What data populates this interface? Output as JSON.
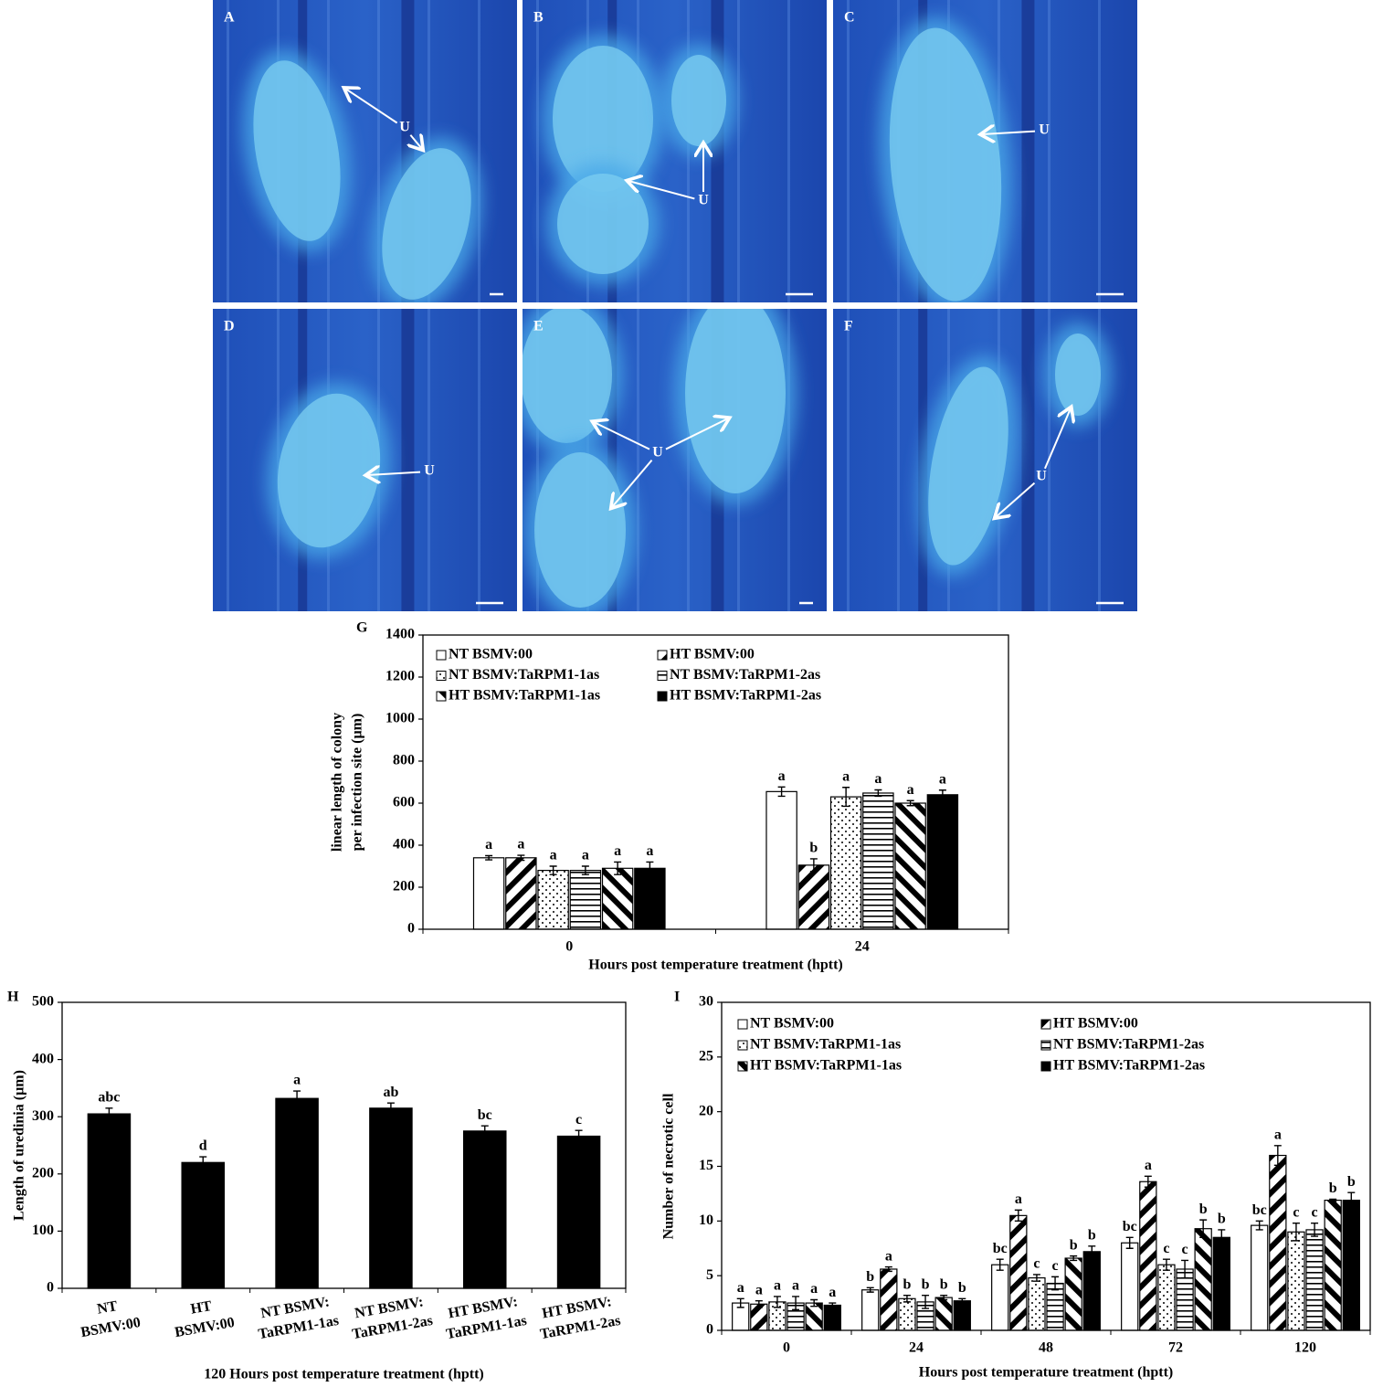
{
  "panels": [
    {
      "label": "A",
      "annotation": "U"
    },
    {
      "label": "B",
      "annotation": "U"
    },
    {
      "label": "C",
      "annotation": "U"
    },
    {
      "label": "D",
      "annotation": "U"
    },
    {
      "label": "E",
      "annotation": "U"
    },
    {
      "label": "F",
      "annotation": "U"
    }
  ],
  "chart_data": [
    {
      "type": "bar",
      "label": "G",
      "ylabel": [
        "linear length of colony",
        "per infection site (µm)"
      ],
      "xlabel": "Hours post temperature treatment (hptt)",
      "categories": [
        "0",
        "24"
      ],
      "ylim": [
        0,
        1400
      ],
      "yticks": [
        0,
        200,
        400,
        600,
        800,
        1000,
        1200,
        1400
      ],
      "series": [
        {
          "name": "NT BSMV:00",
          "color": "#ffffff",
          "pattern": "solid",
          "values": [
            340,
            655
          ],
          "errors": [
            10,
            22
          ],
          "letters": [
            "a",
            "a"
          ]
        },
        {
          "name": "HT BSMV:00",
          "color": "#000000",
          "pattern": "diagonal",
          "values": [
            340,
            305
          ],
          "errors": [
            12,
            30
          ],
          "letters": [
            "a",
            "b"
          ]
        },
        {
          "name": "NT BSMV:TaRPM1-1as",
          "color": "#000000",
          "pattern": "dots",
          "values": [
            280,
            630
          ],
          "errors": [
            20,
            45
          ],
          "letters": [
            "a",
            "a"
          ]
        },
        {
          "name": "NT BSMV:TaRPM1-2as",
          "color": "#000000",
          "pattern": "horizontal",
          "values": [
            280,
            648
          ],
          "errors": [
            20,
            15
          ],
          "letters": [
            "a",
            "a"
          ]
        },
        {
          "name": "HT BSMV:TaRPM1-1as",
          "color": "#000000",
          "pattern": "back-diagonal",
          "values": [
            290,
            600
          ],
          "errors": [
            30,
            12
          ],
          "letters": [
            "a",
            "a"
          ]
        },
        {
          "name": "HT BSMV:TaRPM1-2as",
          "color": "#000000",
          "pattern": "solid",
          "values": [
            290,
            640
          ],
          "errors": [
            30,
            22
          ],
          "letters": [
            "a",
            "a"
          ]
        }
      ]
    },
    {
      "type": "bar",
      "label": "H",
      "ylabel": "Length of uredinia (µm)",
      "xlabel": "120 Hours post temperature treatment (hptt)",
      "categories": [
        [
          "NT",
          "BSMV:00"
        ],
        [
          "HT",
          "BSMV:00"
        ],
        [
          "NT BSMV:",
          "TaRPM1-1as"
        ],
        [
          "NT BSMV:",
          "TaRPM1-2as"
        ],
        [
          "HT BSMV:",
          "TaRPM1-1as"
        ],
        [
          "HT BSMV:",
          "TaRPM1-2as"
        ]
      ],
      "ylim": [
        0,
        500
      ],
      "yticks": [
        0,
        100,
        200,
        300,
        400,
        500
      ],
      "color": "#000000",
      "pattern": "solid",
      "values": [
        305,
        220,
        332,
        315,
        275,
        266
      ],
      "errors": [
        10,
        10,
        13,
        9,
        9,
        10
      ],
      "letters": [
        "abc",
        "d",
        "a",
        "ab",
        "bc",
        "c"
      ]
    },
    {
      "type": "bar",
      "label": "I",
      "ylabel": "Number  of necrotic cell",
      "xlabel": "Hours post temperature treatment (hptt)",
      "categories": [
        "0",
        "24",
        "48",
        "72",
        "120"
      ],
      "ylim": [
        0,
        30
      ],
      "yticks": [
        0,
        5,
        10,
        15,
        20,
        25,
        30
      ],
      "series": [
        {
          "name": "NT BSMV:00",
          "color": "#ffffff",
          "pattern": "solid",
          "values": [
            2.5,
            3.7,
            6.0,
            8.0,
            9.6
          ],
          "errors": [
            0.4,
            0.2,
            0.5,
            0.5,
            0.4
          ],
          "letters": [
            "a",
            "b",
            "bc",
            "bc",
            "bc"
          ]
        },
        {
          "name": "HT BSMV:00",
          "color": "#000000",
          "pattern": "diagonal",
          "values": [
            2.4,
            5.6,
            10.5,
            13.6,
            16.0
          ],
          "errors": [
            0.3,
            0.2,
            0.5,
            0.5,
            0.9
          ],
          "letters": [
            "a",
            "a",
            "a",
            "a",
            "a"
          ]
        },
        {
          "name": "NT BSMV:TaRPM1-1as",
          "color": "#000000",
          "pattern": "dots",
          "values": [
            2.6,
            2.9,
            4.8,
            6.0,
            9.0
          ],
          "errors": [
            0.5,
            0.3,
            0.3,
            0.5,
            0.8
          ],
          "letters": [
            "a",
            "b",
            "c",
            "c",
            "c"
          ]
        },
        {
          "name": "NT BSMV:TaRPM1-2as",
          "color": "#000000",
          "pattern": "horizontal",
          "values": [
            2.5,
            2.6,
            4.3,
            5.6,
            9.2
          ],
          "errors": [
            0.6,
            0.6,
            0.6,
            0.8,
            0.6
          ],
          "letters": [
            "a",
            "b",
            "c",
            "c",
            "c"
          ]
        },
        {
          "name": "HT BSMV:TaRPM1-1as",
          "color": "#000000",
          "pattern": "back-diagonal",
          "values": [
            2.5,
            3.0,
            6.6,
            9.3,
            11.9
          ],
          "errors": [
            0.3,
            0.2,
            0.2,
            0.8,
            0.1
          ],
          "letters": [
            "a",
            "b",
            "b",
            "b",
            "b"
          ]
        },
        {
          "name": "HT BSMV:TaRPM1-2as",
          "color": "#000000",
          "pattern": "solid",
          "values": [
            2.3,
            2.7,
            7.2,
            8.5,
            11.9
          ],
          "errors": [
            0.2,
            0.2,
            0.5,
            0.7,
            0.7
          ],
          "letters": [
            "a",
            "b",
            "b",
            "b",
            "b"
          ]
        }
      ]
    }
  ]
}
